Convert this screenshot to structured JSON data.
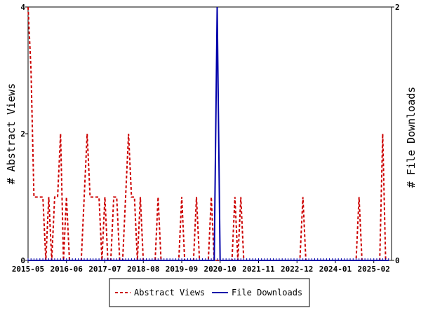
{
  "chart_data": {
    "type": "line",
    "x_ticks": [
      "2015-05",
      "2016-06",
      "2017-07",
      "2018-08",
      "2019-09",
      "2020-10",
      "2021-11",
      "2022-12",
      "2024-01",
      "2025-02"
    ],
    "y_left": {
      "label": "# Abstract Views",
      "ticks": [
        "0",
        "2",
        "4"
      ],
      "ylim": [
        0,
        4
      ]
    },
    "y_right": {
      "label": "# File Downloads",
      "ticks": [
        "0",
        "2"
      ],
      "ylim": [
        0,
        2
      ]
    },
    "x_range": [
      "2015-05",
      "2025-08"
    ],
    "grid": false,
    "legend_position": "bottom-center",
    "series": [
      {
        "name": "Abstract Views",
        "axis": "left",
        "color": "#cc0000",
        "dash": "dashed",
        "points": [
          [
            "2015-05",
            4
          ],
          [
            "2015-06",
            3
          ],
          [
            "2015-07",
            1
          ],
          [
            "2015-08",
            1
          ],
          [
            "2015-09",
            1
          ],
          [
            "2015-10",
            1
          ],
          [
            "2015-11",
            0
          ],
          [
            "2015-12",
            1
          ],
          [
            "2016-01",
            0
          ],
          [
            "2016-02",
            1
          ],
          [
            "2016-03",
            1
          ],
          [
            "2016-04",
            2
          ],
          [
            "2016-05",
            0
          ],
          [
            "2016-06",
            1
          ],
          [
            "2016-07",
            0
          ],
          [
            "2016-08",
            0
          ],
          [
            "2016-09",
            0
          ],
          [
            "2016-10",
            0
          ],
          [
            "2016-11",
            0
          ],
          [
            "2016-12",
            1
          ],
          [
            "2017-01",
            2
          ],
          [
            "2017-02",
            1
          ],
          [
            "2017-03",
            1
          ],
          [
            "2017-04",
            1
          ],
          [
            "2017-05",
            1
          ],
          [
            "2017-06",
            0
          ],
          [
            "2017-07",
            1
          ],
          [
            "2017-08",
            0
          ],
          [
            "2017-09",
            0
          ],
          [
            "2017-10",
            1
          ],
          [
            "2017-11",
            1
          ],
          [
            "2017-12",
            0
          ],
          [
            "2018-01",
            0
          ],
          [
            "2018-02",
            1
          ],
          [
            "2018-03",
            2
          ],
          [
            "2018-04",
            1
          ],
          [
            "2018-05",
            1
          ],
          [
            "2018-06",
            0
          ],
          [
            "2018-07",
            1
          ],
          [
            "2018-08",
            0
          ],
          [
            "2018-09",
            0
          ],
          [
            "2018-10",
            0
          ],
          [
            "2018-11",
            0
          ],
          [
            "2018-12",
            0
          ],
          [
            "2019-01",
            1
          ],
          [
            "2019-02",
            0
          ],
          [
            "2019-03",
            0
          ],
          [
            "2019-04",
            0
          ],
          [
            "2019-05",
            0
          ],
          [
            "2019-06",
            0
          ],
          [
            "2019-07",
            0
          ],
          [
            "2019-08",
            0
          ],
          [
            "2019-09",
            1
          ],
          [
            "2019-10",
            0
          ],
          [
            "2019-11",
            0
          ],
          [
            "2019-12",
            0
          ],
          [
            "2020-01",
            0
          ],
          [
            "2020-02",
            1
          ],
          [
            "2020-03",
            0
          ],
          [
            "2020-04",
            0
          ],
          [
            "2020-05",
            0
          ],
          [
            "2020-06",
            0
          ],
          [
            "2020-07",
            1
          ],
          [
            "2020-08",
            0
          ],
          [
            "2020-09",
            0
          ],
          [
            "2020-10",
            0
          ],
          [
            "2020-11",
            0
          ],
          [
            "2020-12",
            0
          ],
          [
            "2021-01",
            0
          ],
          [
            "2021-02",
            0
          ],
          [
            "2021-03",
            1
          ],
          [
            "2021-04",
            0
          ],
          [
            "2021-05",
            1
          ],
          [
            "2021-06",
            0
          ],
          [
            "2021-07",
            0
          ],
          [
            "2021-08",
            0
          ],
          [
            "2021-09",
            0
          ],
          [
            "2021-10",
            0
          ],
          [
            "2021-11",
            0
          ],
          [
            "2021-12",
            0
          ],
          [
            "2022-01",
            0
          ],
          [
            "2022-02",
            0
          ],
          [
            "2022-03",
            0
          ],
          [
            "2022-04",
            0
          ],
          [
            "2022-05",
            0
          ],
          [
            "2022-06",
            0
          ],
          [
            "2022-07",
            0
          ],
          [
            "2022-08",
            0
          ],
          [
            "2022-09",
            0
          ],
          [
            "2022-10",
            0
          ],
          [
            "2022-11",
            0
          ],
          [
            "2022-12",
            0
          ],
          [
            "2023-01",
            0
          ],
          [
            "2023-02",
            1
          ],
          [
            "2023-03",
            0
          ],
          [
            "2023-04",
            0
          ],
          [
            "2023-05",
            0
          ],
          [
            "2023-06",
            0
          ],
          [
            "2023-07",
            0
          ],
          [
            "2023-08",
            0
          ],
          [
            "2023-09",
            0
          ],
          [
            "2023-10",
            0
          ],
          [
            "2023-11",
            0
          ],
          [
            "2023-12",
            0
          ],
          [
            "2024-01",
            0
          ],
          [
            "2024-02",
            0
          ],
          [
            "2024-03",
            0
          ],
          [
            "2024-04",
            0
          ],
          [
            "2024-05",
            0
          ],
          [
            "2024-06",
            0
          ],
          [
            "2024-07",
            0
          ],
          [
            "2024-08",
            0
          ],
          [
            "2024-09",
            1
          ],
          [
            "2024-10",
            0
          ],
          [
            "2024-11",
            0
          ],
          [
            "2024-12",
            0
          ],
          [
            "2025-01",
            0
          ],
          [
            "2025-02",
            0
          ],
          [
            "2025-03",
            0
          ],
          [
            "2025-04",
            0
          ],
          [
            "2025-05",
            2
          ],
          [
            "2025-06",
            0
          ],
          [
            "2025-07",
            0
          ]
        ]
      },
      {
        "name": "File Downloads",
        "axis": "right",
        "color": "#0000aa",
        "dash": "solid",
        "points": [
          [
            "2015-05",
            0
          ],
          [
            "2020-08",
            0
          ],
          [
            "2020-09",
            2
          ],
          [
            "2020-10",
            0
          ],
          [
            "2025-07",
            0
          ]
        ]
      }
    ]
  }
}
